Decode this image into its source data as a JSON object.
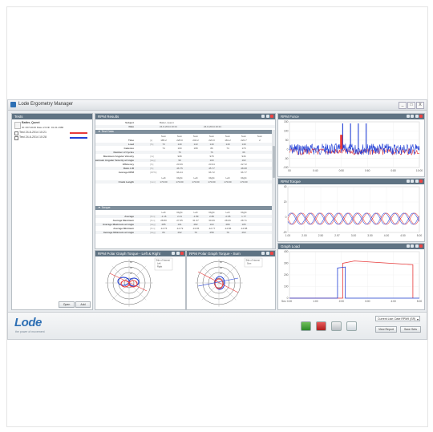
{
  "app": {
    "title": "Lode Ergometry Manager"
  },
  "window_buttons": [
    "_",
    "□",
    "X"
  ],
  "tests_panel": {
    "title": "Tests",
    "subject_name": "Batter, Quent",
    "subject_meta": "ID: 00714166  Date of birth: 01-01-1980",
    "tests": [
      {
        "label": "Test  24-6-2014 10:21",
        "color": "#e83b3b"
      },
      {
        "label": "Test  24-6-2014 10:28",
        "color": "#2340d6"
      }
    ],
    "buttons": {
      "open": "Open",
      "add": "Add"
    }
  },
  "results_panel": {
    "title": "RPM Results",
    "subject_label": "Subject",
    "subject_value": "Batter, Quent",
    "date_label": "Date",
    "date_values": [
      "24-6-2014 10:21",
      "24-6-2014 10:21"
    ],
    "test_data_title": "Test Data",
    "col_headers": [
      "Sum",
      "Sum",
      "Sum",
      "Sum",
      "Sum",
      "Sum",
      "Sum"
    ],
    "rows": [
      {
        "label": "Time",
        "unit": "[s]",
        "values": [
          "185.2",
          "228.0",
          "240.2",
          "220.0",
          "181.2",
          "220.7",
          "2"
        ]
      },
      {
        "label": "Load",
        "unit": "[%]",
        "values": [
          "73",
          "149",
          "143",
          "149",
          "149",
          "149",
          ""
        ]
      },
      {
        "label": "Cadence",
        "unit": "",
        "values": [
          "74",
          "100",
          "168",
          "86",
          "74",
          "170",
          ""
        ]
      },
      {
        "label": "Number of Cycles",
        "unit": "",
        "values": [
          "",
          "76",
          "",
          "76",
          "",
          "66",
          ""
        ]
      },
      {
        "label": "Maximum Angular Velocity",
        "unit": "[r/s]",
        "values": [
          "",
          "908",
          "",
          "978",
          "",
          "946",
          ""
        ]
      },
      {
        "label": "Maximum Angular Velocity at Angle",
        "unit": "[deg]",
        "values": [
          "",
          "99",
          "",
          "100",
          "",
          "102",
          ""
        ]
      },
      {
        "label": "Efficiency",
        "unit": "[%]",
        "values": [
          "",
          "23.09",
          "",
          "23.04",
          "",
          "22.72",
          ""
        ]
      },
      {
        "label": "Ratio L/R",
        "unit": "[%]",
        "values": [
          "",
          "46.75",
          "",
          "45.77",
          "",
          "48.08",
          ""
        ]
      },
      {
        "label": "Average RPM",
        "unit": "[RPM]",
        "values": [
          "",
          "96.24",
          "",
          "96.72",
          "",
          "96.77",
          ""
        ]
      }
    ],
    "crank_header": [
      "Left",
      "Right",
      "Left",
      "Right",
      "Left",
      "Right"
    ],
    "crank_row": {
      "label": "Crank Length",
      "unit": "[mm]",
      "values": [
        "170.00",
        "170.00",
        "170.00",
        "170.00",
        "170.00",
        "170.00"
      ]
    },
    "torque_title": "Torque",
    "torque_header": [
      "Left",
      "Right",
      "Left",
      "Right",
      "Left",
      "Right"
    ],
    "torque_rows": [
      {
        "label": "Average",
        "unit": "[Nm]",
        "values": [
          "-1.16",
          "2.21",
          "-1.89",
          "2.86",
          "-0.95",
          "1.77"
        ]
      },
      {
        "label": "Average Maximum",
        "unit": "[Nm]",
        "values": [
          "28.80",
          "27.65",
          "31.37",
          "30.09",
          "28.06",
          "28.71"
        ]
      },
      {
        "label": "Average Maximum at Angle",
        "unit": "[deg]",
        "values": [
          "285",
          "101",
          "282",
          "103",
          "289",
          "105"
        ]
      },
      {
        "label": "Average Minimum",
        "unit": "[Nm]",
        "values": [
          "-14.76",
          "-14.79",
          "-13.95",
          "-12.77",
          "-14.86",
          "-14.88"
        ]
      },
      {
        "label": "Average Minimum at Angle",
        "unit": "[deg]",
        "values": [
          "84",
          "262",
          "79",
          "258",
          "79",
          "263"
        ]
      }
    ]
  },
  "polar_lr": {
    "title": "RPM Polar Graph Torque - Left & Right",
    "legend_title": "Side of Interest",
    "legend_items": [
      "Left",
      "Right"
    ],
    "radii_labels": [
      "20",
      "40",
      "60"
    ],
    "colors": [
      "#e83b3b",
      "#2340d6"
    ]
  },
  "polar_sum": {
    "title": "RPM Polar Graph Torque - Sum",
    "legend_title": "Side of Interest",
    "legend_items": [
      "Sum"
    ],
    "radii_labels": [
      "20",
      "40",
      "60"
    ],
    "colors": [
      "#e83b3b",
      "#2340d6"
    ]
  },
  "force_chart": {
    "title": "RPM Force",
    "x_ticks": [
      "00",
      "0:40",
      "0:50",
      "0:60",
      "0:80",
      "10:00"
    ],
    "y_ticks": [
      "150",
      "100",
      "50",
      "0",
      "-50",
      "-100"
    ],
    "colors": [
      "#e83b3b",
      "#2340d6"
    ]
  },
  "torque_chart": {
    "title": "RPM Torque",
    "x_ticks": [
      "1.00",
      "2.00",
      "2.50",
      "2.97",
      "3.00",
      "3.50",
      "4.00",
      "4.50",
      "5.00"
    ],
    "y_ticks": [
      "40",
      "20",
      "0",
      "-20"
    ],
    "colors": [
      "#e83b3b",
      "#2340d6"
    ]
  },
  "load_chart": {
    "title": "Graph Load",
    "x_ticks": [
      "0.00",
      "1:00",
      "2:00",
      "3:00",
      "4:00",
      "5:00"
    ],
    "y_ticks": [
      "400",
      "300",
      "200",
      "100",
      "0"
    ],
    "x_axis_label": "Sec",
    "colors": [
      "#e83b3b",
      "#2340d6"
    ]
  },
  "footer": {
    "logo": "Lode",
    "logo_sub": "the power of movement",
    "select_value": "Current Lise: Date RPM9 (SR)",
    "buttons": {
      "view_report": "View Report",
      "save_as": "Save Sets"
    },
    "tool_icons": [
      "excel-icon",
      "pdf-icon",
      "print-icon",
      "monitor-icon"
    ]
  }
}
